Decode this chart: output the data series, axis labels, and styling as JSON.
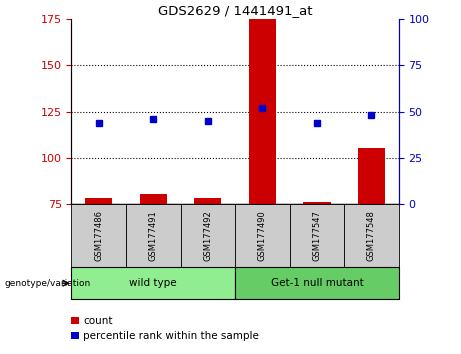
{
  "title": "GDS2629 / 1441491_at",
  "samples": [
    "GSM177486",
    "GSM177491",
    "GSM177492",
    "GSM177490",
    "GSM177547",
    "GSM177548"
  ],
  "count_values": [
    78,
    80,
    78,
    175,
    76,
    105
  ],
  "percentile_values": [
    44,
    46,
    45,
    52,
    44,
    48
  ],
  "group_info": [
    {
      "indices": [
        0,
        1,
        2
      ],
      "label": "wild type",
      "color": "#90EE90"
    },
    {
      "indices": [
        3,
        4,
        5
      ],
      "label": "Get-1 null mutant",
      "color": "#66CC66"
    }
  ],
  "left_ylim": [
    75,
    175
  ],
  "right_ylim": [
    0,
    100
  ],
  "left_yticks": [
    75,
    100,
    125,
    150,
    175
  ],
  "right_yticks": [
    0,
    25,
    50,
    75,
    100
  ],
  "left_tick_color": "#CC0000",
  "right_tick_color": "#0000CC",
  "dotted_lines": [
    100,
    125,
    150
  ],
  "bar_color": "#CC0000",
  "dot_color": "#0000CC",
  "bar_width": 0.5,
  "label_count": "count",
  "label_percentile": "percentile rank within the sample",
  "group_annotation": "genotype/variation",
  "bg_color": "#FFFFFF",
  "plot_bg": "#FFFFFF",
  "sample_box_color": "#CCCCCC",
  "figsize": [
    4.61,
    3.54
  ],
  "dpi": 100
}
